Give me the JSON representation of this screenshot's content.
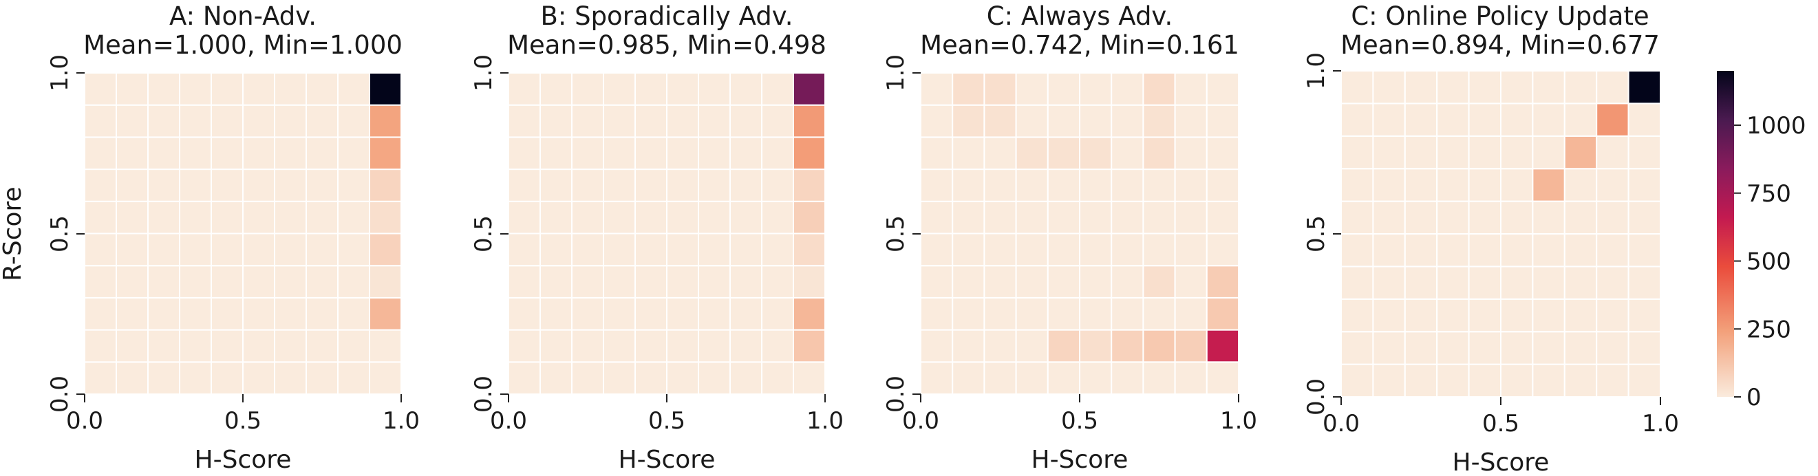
{
  "chart_data": [
    {
      "type": "heatmap",
      "title": "A: Non-Adv.",
      "subtitle": "Mean=1.000, Min=1.000",
      "xlabel": "H-Score",
      "ylabel": "R-Score",
      "xlim": [
        0,
        1
      ],
      "ylim": [
        0,
        1
      ],
      "x_ticks": [
        "0.0",
        "0.5",
        "1.0"
      ],
      "y_ticks": [
        "0.0",
        "0.5",
        "1.0"
      ],
      "grid_size": 10,
      "cells": [
        {
          "h": 0.95,
          "r": 0.95,
          "count": 1200
        },
        {
          "h": 0.95,
          "r": 0.85,
          "count": 230
        },
        {
          "h": 0.95,
          "r": 0.75,
          "count": 220
        },
        {
          "h": 0.95,
          "r": 0.65,
          "count": 70
        },
        {
          "h": 0.95,
          "r": 0.55,
          "count": 40
        },
        {
          "h": 0.95,
          "r": 0.45,
          "count": 80
        },
        {
          "h": 0.95,
          "r": 0.35,
          "count": 20
        },
        {
          "h": 0.95,
          "r": 0.25,
          "count": 170
        }
      ]
    },
    {
      "type": "heatmap",
      "title": "B: Sporadically Adv.",
      "subtitle": "Mean=0.985, Min=0.498",
      "xlabel": "H-Score",
      "ylabel": "",
      "xlim": [
        0,
        1
      ],
      "ylim": [
        0,
        1
      ],
      "x_ticks": [
        "0.0",
        "0.5",
        "1.0"
      ],
      "y_ticks": [
        "0.0",
        "0.5",
        "1.0"
      ],
      "grid_size": 10,
      "cells": [
        {
          "h": 0.95,
          "r": 0.95,
          "count": 900
        },
        {
          "h": 0.95,
          "r": 0.85,
          "count": 260
        },
        {
          "h": 0.95,
          "r": 0.75,
          "count": 250
        },
        {
          "h": 0.95,
          "r": 0.65,
          "count": 70
        },
        {
          "h": 0.95,
          "r": 0.55,
          "count": 90
        },
        {
          "h": 0.95,
          "r": 0.45,
          "count": 50
        },
        {
          "h": 0.95,
          "r": 0.35,
          "count": 20
        },
        {
          "h": 0.95,
          "r": 0.25,
          "count": 170
        },
        {
          "h": 0.95,
          "r": 0.15,
          "count": 120
        }
      ]
    },
    {
      "type": "heatmap",
      "title": "C: Always Adv.",
      "subtitle": "Mean=0.742, Min=0.161",
      "xlabel": "H-Score",
      "ylabel": "",
      "xlim": [
        0,
        1
      ],
      "ylim": [
        0,
        1
      ],
      "x_ticks": [
        "0.0",
        "0.5",
        "1.0"
      ],
      "y_ticks": [
        "0.0",
        "0.5",
        "1.0"
      ],
      "grid_size": 10,
      "cells": [
        {
          "h": 0.15,
          "r": 0.95,
          "count": 40
        },
        {
          "h": 0.25,
          "r": 0.95,
          "count": 40
        },
        {
          "h": 0.75,
          "r": 0.95,
          "count": 50
        },
        {
          "h": 0.15,
          "r": 0.85,
          "count": 30
        },
        {
          "h": 0.25,
          "r": 0.85,
          "count": 30
        },
        {
          "h": 0.75,
          "r": 0.85,
          "count": 30
        },
        {
          "h": 0.35,
          "r": 0.75,
          "count": 30
        },
        {
          "h": 0.45,
          "r": 0.75,
          "count": 30
        },
        {
          "h": 0.55,
          "r": 0.75,
          "count": 30
        },
        {
          "h": 0.75,
          "r": 0.75,
          "count": 40
        },
        {
          "h": 0.75,
          "r": 0.35,
          "count": 40
        },
        {
          "h": 0.95,
          "r": 0.35,
          "count": 100
        },
        {
          "h": 0.95,
          "r": 0.25,
          "count": 110
        },
        {
          "h": 0.45,
          "r": 0.15,
          "count": 70
        },
        {
          "h": 0.55,
          "r": 0.15,
          "count": 40
        },
        {
          "h": 0.65,
          "r": 0.15,
          "count": 80
        },
        {
          "h": 0.75,
          "r": 0.15,
          "count": 110
        },
        {
          "h": 0.85,
          "r": 0.15,
          "count": 90
        },
        {
          "h": 0.95,
          "r": 0.15,
          "count": 650
        }
      ]
    },
    {
      "type": "heatmap",
      "title": "C: Online Policy Update",
      "subtitle": "Mean=0.894, Min=0.677",
      "xlabel": "H-Score",
      "ylabel": "",
      "xlim": [
        0,
        1
      ],
      "ylim": [
        0,
        1
      ],
      "x_ticks": [
        "0.0",
        "0.5",
        "1.0"
      ],
      "y_ticks": [
        "0.0",
        "0.5",
        "1.0"
      ],
      "grid_size": 10,
      "cells": [
        {
          "h": 0.95,
          "r": 0.95,
          "count": 1200
        },
        {
          "h": 0.85,
          "r": 0.85,
          "count": 270
        },
        {
          "h": 0.75,
          "r": 0.75,
          "count": 170
        },
        {
          "h": 0.65,
          "r": 0.65,
          "count": 170
        }
      ]
    }
  ],
  "colorbar": {
    "min": 0,
    "max": 1200,
    "ticks": [
      {
        "value": 0,
        "label": "0"
      },
      {
        "value": 250,
        "label": "250"
      },
      {
        "value": 500,
        "label": "500"
      },
      {
        "value": 750,
        "label": "750"
      },
      {
        "value": 1000,
        "label": "1000"
      }
    ],
    "colors": [
      {
        "stop": 0.0,
        "color": "#faebdd"
      },
      {
        "stop": 0.2,
        "color": "#f3a17b"
      },
      {
        "stop": 0.4,
        "color": "#ea4c3c"
      },
      {
        "stop": 0.55,
        "color": "#c31a50"
      },
      {
        "stop": 0.7,
        "color": "#8a1b5c"
      },
      {
        "stop": 0.85,
        "color": "#4a1a50"
      },
      {
        "stop": 1.0,
        "color": "#03051a"
      }
    ]
  }
}
